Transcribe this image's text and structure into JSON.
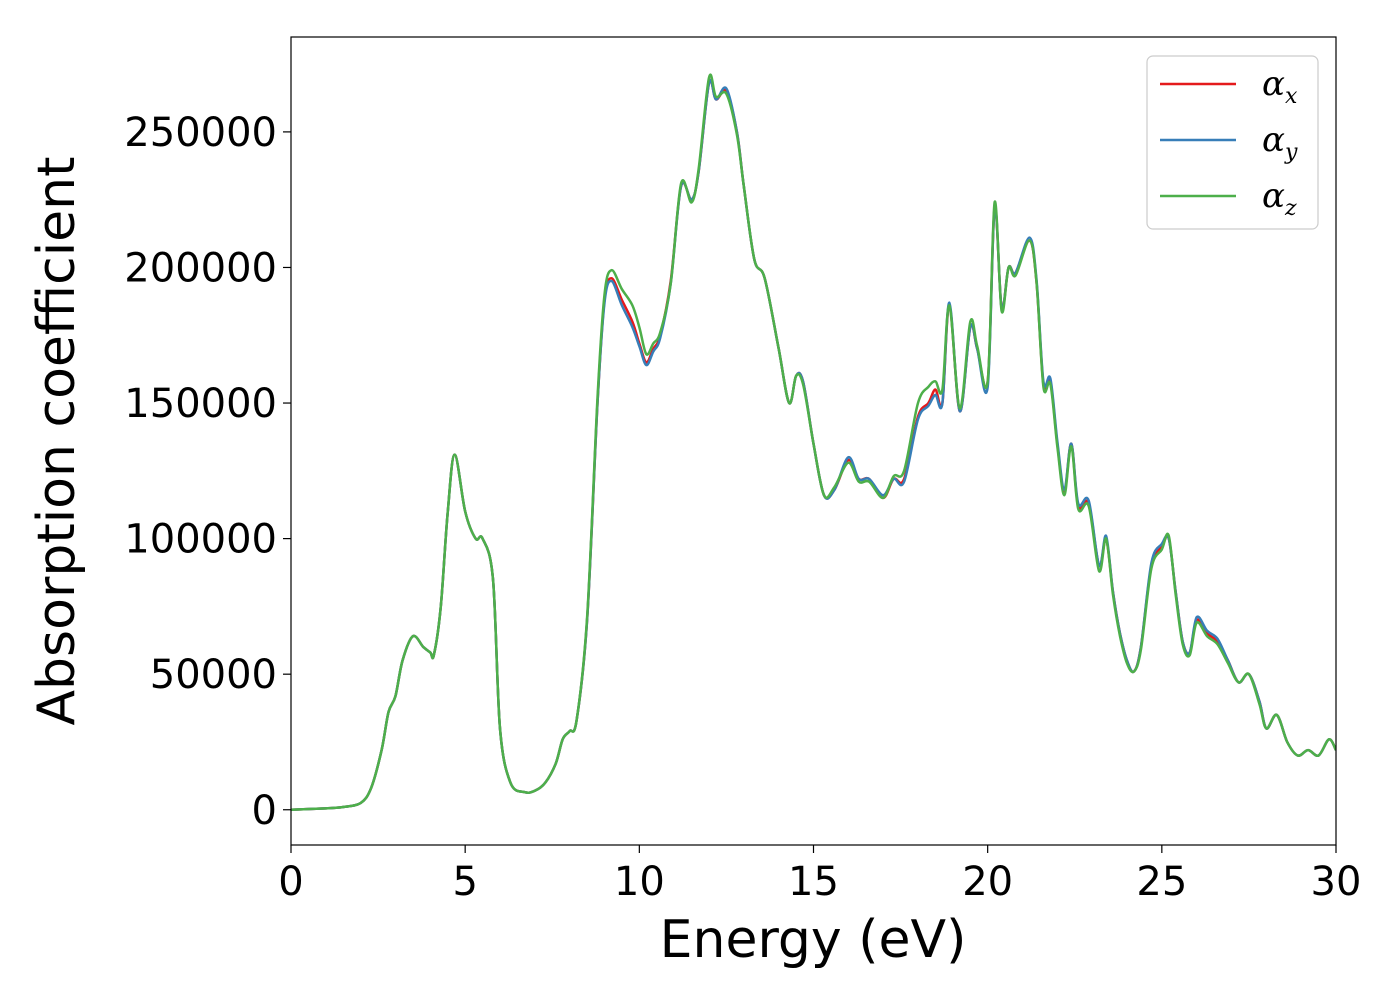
{
  "chart_data": {
    "type": "line",
    "xlabel": "Energy (eV)",
    "ylabel": "Absorption coefficient",
    "xlim": [
      0,
      30
    ],
    "ylim": [
      -13000,
      285000
    ],
    "xticks": [
      0,
      5,
      10,
      15,
      20,
      25,
      30
    ],
    "yticks": [
      0,
      50000,
      100000,
      150000,
      200000,
      250000
    ],
    "grid": false,
    "legend_position": "top-right",
    "colors": {
      "alpha_x": "#e41a1c",
      "alpha_y": "#377eb8",
      "alpha_z": "#4daf4a"
    },
    "legend": [
      {
        "symbol": "α",
        "sub": "x",
        "color": "#e41a1c"
      },
      {
        "symbol": "α",
        "sub": "y",
        "color": "#377eb8"
      },
      {
        "symbol": "α",
        "sub": "z",
        "color": "#4daf4a"
      }
    ],
    "series": [
      {
        "key": "alpha_x",
        "x": [
          0,
          1,
          1.5,
          2,
          2.3,
          2.6,
          2.8,
          3.0,
          3.2,
          3.5,
          3.8,
          4.0,
          4.1,
          4.3,
          4.5,
          4.7,
          5.0,
          5.3,
          5.5,
          5.8,
          6.0,
          6.3,
          6.7,
          7.0,
          7.3,
          7.6,
          7.8,
          8.0,
          8.2,
          8.5,
          8.8,
          9.0,
          9.2,
          9.5,
          9.8,
          10.0,
          10.2,
          10.4,
          10.6,
          10.9,
          11.2,
          11.5,
          11.7,
          12.0,
          12.2,
          12.5,
          12.8,
          13.0,
          13.3,
          13.6,
          14.0,
          14.3,
          14.5,
          14.7,
          15.0,
          15.3,
          15.6,
          16.0,
          16.3,
          16.6,
          17.0,
          17.3,
          17.6,
          18.0,
          18.3,
          18.5,
          18.7,
          18.9,
          19.2,
          19.5,
          19.7,
          20.0,
          20.2,
          20.4,
          20.6,
          20.8,
          21.2,
          21.4,
          21.6,
          21.8,
          22.0,
          22.2,
          22.4,
          22.6,
          22.9,
          23.2,
          23.4,
          23.6,
          23.8,
          24.0,
          24.2,
          24.4,
          24.7,
          25.0,
          25.2,
          25.4,
          25.6,
          25.8,
          26.0,
          26.3,
          26.6,
          26.9,
          27.2,
          27.5,
          27.8,
          28.0,
          28.3,
          28.6,
          28.9,
          29.2,
          29.5,
          29.8,
          30.0
        ],
        "y": [
          0,
          500,
          1000,
          2500,
          8000,
          22000,
          36000,
          42000,
          55000,
          64000,
          60000,
          58000,
          57000,
          75000,
          110000,
          131000,
          110000,
          100000,
          100000,
          85000,
          30000,
          10000,
          6500,
          7000,
          10000,
          17000,
          26000,
          29000,
          33000,
          70000,
          150000,
          188000,
          196000,
          188000,
          180000,
          172000,
          165000,
          170000,
          175000,
          195000,
          230000,
          225000,
          235000,
          268000,
          262000,
          265000,
          250000,
          230000,
          203000,
          196000,
          170000,
          150000,
          160000,
          158000,
          135000,
          116000,
          118000,
          129000,
          122000,
          122000,
          115000,
          122000,
          122000,
          145000,
          150000,
          155000,
          150000,
          186000,
          147000,
          178000,
          170000,
          158000,
          222000,
          185000,
          200000,
          198000,
          210000,
          195000,
          157000,
          158000,
          135000,
          117000,
          135000,
          112000,
          113000,
          90000,
          100000,
          80000,
          65000,
          55000,
          51000,
          60000,
          90000,
          97000,
          100000,
          80000,
          62000,
          58000,
          70000,
          65000,
          62000,
          55000,
          47000,
          50000,
          40000,
          30000,
          35000,
          25000,
          20000,
          22000,
          20000,
          26000,
          22000
        ]
      },
      {
        "key": "alpha_y",
        "x": [
          0,
          1,
          1.5,
          2,
          2.3,
          2.6,
          2.8,
          3.0,
          3.2,
          3.5,
          3.8,
          4.0,
          4.1,
          4.3,
          4.5,
          4.7,
          5.0,
          5.3,
          5.5,
          5.8,
          6.0,
          6.3,
          6.7,
          7.0,
          7.3,
          7.6,
          7.8,
          8.0,
          8.2,
          8.5,
          8.8,
          9.0,
          9.2,
          9.5,
          9.8,
          10.0,
          10.2,
          10.4,
          10.6,
          10.9,
          11.2,
          11.5,
          11.7,
          12.0,
          12.2,
          12.5,
          12.8,
          13.0,
          13.3,
          13.6,
          14.0,
          14.3,
          14.5,
          14.7,
          15.0,
          15.3,
          15.6,
          16.0,
          16.3,
          16.6,
          17.0,
          17.3,
          17.6,
          18.0,
          18.3,
          18.5,
          18.7,
          18.9,
          19.2,
          19.5,
          19.7,
          20.0,
          20.2,
          20.4,
          20.6,
          20.8,
          21.2,
          21.4,
          21.6,
          21.8,
          22.0,
          22.2,
          22.4,
          22.6,
          22.9,
          23.2,
          23.4,
          23.6,
          23.8,
          24.0,
          24.2,
          24.4,
          24.7,
          25.0,
          25.2,
          25.4,
          25.6,
          25.8,
          26.0,
          26.3,
          26.6,
          26.9,
          27.2,
          27.5,
          27.8,
          28.0,
          28.3,
          28.6,
          28.9,
          29.2,
          29.5,
          29.8,
          30.0
        ],
        "y": [
          0,
          500,
          1000,
          2500,
          8000,
          22000,
          36000,
          42000,
          55000,
          64000,
          60000,
          58000,
          57000,
          75000,
          110000,
          131000,
          110000,
          100000,
          100000,
          85000,
          30000,
          10000,
          6500,
          7000,
          10000,
          17000,
          26000,
          29000,
          33000,
          70000,
          150000,
          187000,
          195000,
          186000,
          178000,
          171000,
          164000,
          169000,
          174000,
          194000,
          230000,
          225000,
          235000,
          268000,
          262000,
          266000,
          250000,
          230000,
          203000,
          196000,
          170000,
          150000,
          160000,
          158000,
          135000,
          116000,
          118000,
          130000,
          122000,
          122000,
          116000,
          122000,
          121000,
          144000,
          149000,
          153000,
          150000,
          187000,
          147000,
          178000,
          170000,
          156000,
          222000,
          185000,
          200000,
          198000,
          211000,
          196000,
          158000,
          159000,
          136000,
          118000,
          135000,
          113000,
          114000,
          90000,
          101000,
          80000,
          65000,
          55000,
          51000,
          60000,
          91000,
          98000,
          100000,
          80000,
          62000,
          58000,
          71000,
          66000,
          63000,
          55000,
          47000,
          50000,
          40000,
          30000,
          35000,
          25000,
          20000,
          22000,
          20000,
          26000,
          22000
        ]
      },
      {
        "key": "alpha_z",
        "x": [
          0,
          1,
          1.5,
          2,
          2.3,
          2.6,
          2.8,
          3.0,
          3.2,
          3.5,
          3.8,
          4.0,
          4.1,
          4.3,
          4.5,
          4.7,
          5.0,
          5.3,
          5.5,
          5.8,
          6.0,
          6.3,
          6.7,
          7.0,
          7.3,
          7.6,
          7.8,
          8.0,
          8.2,
          8.5,
          8.8,
          9.0,
          9.2,
          9.5,
          9.8,
          10.0,
          10.2,
          10.4,
          10.6,
          10.9,
          11.2,
          11.5,
          11.7,
          12.0,
          12.2,
          12.5,
          12.8,
          13.0,
          13.3,
          13.6,
          14.0,
          14.3,
          14.5,
          14.7,
          15.0,
          15.3,
          15.6,
          16.0,
          16.3,
          16.6,
          17.0,
          17.3,
          17.6,
          18.0,
          18.3,
          18.5,
          18.7,
          18.9,
          19.2,
          19.5,
          19.7,
          20.0,
          20.2,
          20.4,
          20.6,
          20.8,
          21.2,
          21.4,
          21.6,
          21.8,
          22.0,
          22.2,
          22.4,
          22.6,
          22.9,
          23.2,
          23.4,
          23.6,
          23.8,
          24.0,
          24.2,
          24.4,
          24.7,
          25.0,
          25.2,
          25.4,
          25.6,
          25.8,
          26.0,
          26.3,
          26.6,
          26.9,
          27.2,
          27.5,
          27.8,
          28.0,
          28.3,
          28.6,
          28.9,
          29.2,
          29.5,
          29.8,
          30.0
        ],
        "y": [
          0,
          500,
          1000,
          2500,
          8000,
          22000,
          36000,
          42000,
          55000,
          64000,
          60000,
          58000,
          57000,
          75000,
          110000,
          131000,
          110000,
          100000,
          100000,
          85000,
          30000,
          10000,
          6500,
          7000,
          10000,
          17000,
          26000,
          29000,
          33000,
          71000,
          152000,
          190000,
          199000,
          192000,
          186000,
          178000,
          168000,
          172000,
          176000,
          194000,
          231000,
          224000,
          236000,
          270000,
          263000,
          264000,
          249000,
          230000,
          203000,
          196000,
          170000,
          150000,
          160000,
          157000,
          135000,
          116000,
          119000,
          128000,
          121000,
          121000,
          115000,
          123000,
          125000,
          150000,
          156000,
          158000,
          155000,
          186000,
          148000,
          180000,
          171000,
          158000,
          224000,
          184000,
          200000,
          197000,
          210000,
          195000,
          156000,
          157000,
          134000,
          116000,
          134000,
          111000,
          112000,
          88000,
          100000,
          79000,
          64000,
          54000,
          51000,
          59000,
          89000,
          96000,
          101000,
          79000,
          61000,
          57000,
          69000,
          64000,
          61000,
          54000,
          47000,
          50000,
          39000,
          30000,
          35000,
          25000,
          20000,
          22000,
          20000,
          26000,
          22000
        ]
      }
    ]
  }
}
